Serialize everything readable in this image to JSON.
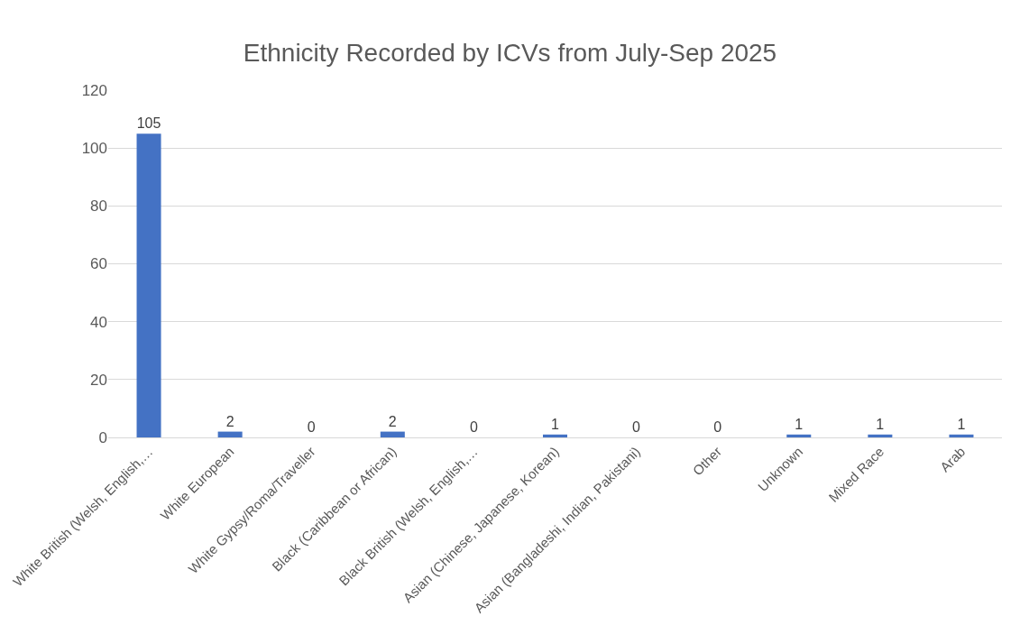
{
  "chart_data": {
    "type": "bar",
    "title": "Ethnicity Recorded by ICVs from July-Sep 2025",
    "categories": [
      "White British (Welsh, English,…",
      "White European",
      "White Gypsy/Roma/Traveller",
      "Black (Caribbean or African)",
      "Black British (Welsh, English,…",
      "Asian (Chinese, Japanese, Korean)",
      "Asian (Bangladeshi, Indian, Pakistani)",
      "Other",
      "Unknown",
      "Mixed Race",
      "Arab"
    ],
    "values": [
      105,
      2,
      0,
      2,
      0,
      1,
      0,
      0,
      1,
      1,
      1
    ],
    "color": "#4472c4",
    "ylim": [
      0,
      120
    ],
    "yticks": [
      0,
      20,
      40,
      60,
      80,
      100,
      120
    ],
    "grid": "y",
    "data_labels": true
  }
}
